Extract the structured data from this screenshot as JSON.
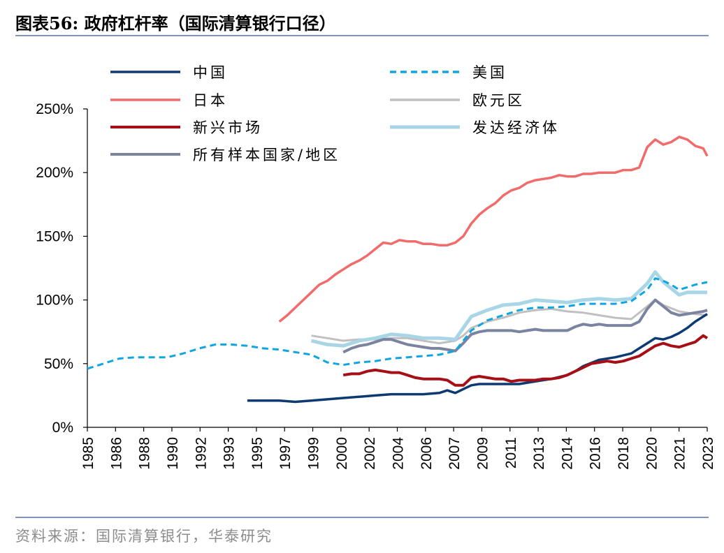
{
  "header": {
    "title": "图表56:  政府杠杆率（国际清算银行口径）"
  },
  "footer": {
    "source": "资料来源：国际清算银行，华泰研究"
  },
  "chart_data": {
    "type": "line",
    "title": "",
    "ylim": [
      0,
      250
    ],
    "yticks": [
      "0%",
      "50%",
      "100%",
      "150%",
      "200%",
      "250%"
    ],
    "xlim": [
      1985,
      2023.75
    ],
    "xticks": [
      "1985",
      "1986",
      "1988",
      "1990",
      "1992",
      "1993",
      "1995",
      "1997",
      "1999",
      "2000",
      "2002",
      "2004",
      "2006",
      "2007",
      "2009",
      "2011",
      "2013",
      "2014",
      "2016",
      "2018",
      "2020",
      "2021",
      "2023"
    ],
    "legend_position": "top",
    "series": [
      {
        "name": "中国",
        "color": "#0d3a73",
        "width": 3.5,
        "dash": "",
        "points": [
          [
            1995.0,
            21
          ],
          [
            1996.0,
            21
          ],
          [
            1997.0,
            21
          ],
          [
            1998.0,
            20
          ],
          [
            1999.0,
            21
          ],
          [
            2000.0,
            22
          ],
          [
            2001.0,
            23
          ],
          [
            2002.0,
            24
          ],
          [
            2003.0,
            25
          ],
          [
            2004.0,
            26
          ],
          [
            2005.0,
            26
          ],
          [
            2006.0,
            26
          ],
          [
            2007.0,
            27
          ],
          [
            2007.5,
            29
          ],
          [
            2008.0,
            27
          ],
          [
            2008.5,
            30
          ],
          [
            2009.0,
            33
          ],
          [
            2009.5,
            34
          ],
          [
            2010.0,
            34
          ],
          [
            2011.0,
            34
          ],
          [
            2012.0,
            34
          ],
          [
            2013.0,
            36
          ],
          [
            2014.0,
            38
          ],
          [
            2015.0,
            41
          ],
          [
            2015.5,
            44
          ],
          [
            2016.0,
            48
          ],
          [
            2017.0,
            53
          ],
          [
            2018.0,
            55
          ],
          [
            2019.0,
            58
          ],
          [
            2019.5,
            62
          ],
          [
            2020.0,
            66
          ],
          [
            2020.5,
            70
          ],
          [
            2021.0,
            69
          ],
          [
            2021.5,
            71
          ],
          [
            2022.0,
            74
          ],
          [
            2022.5,
            78
          ],
          [
            2023.0,
            83
          ],
          [
            2023.5,
            87
          ],
          [
            2023.75,
            89
          ]
        ]
      },
      {
        "name": "美国",
        "color": "#10a5e0",
        "width": 3,
        "dash": "9,6",
        "points": [
          [
            1985.0,
            46
          ],
          [
            1986.0,
            50
          ],
          [
            1987.0,
            54
          ],
          [
            1988.0,
            55
          ],
          [
            1989.0,
            55
          ],
          [
            1990.0,
            55
          ],
          [
            1991.0,
            58
          ],
          [
            1992.0,
            62
          ],
          [
            1993.0,
            65
          ],
          [
            1994.0,
            65
          ],
          [
            1995.0,
            64
          ],
          [
            1996.0,
            62
          ],
          [
            1997.0,
            61
          ],
          [
            1998.0,
            59
          ],
          [
            1999.0,
            57
          ],
          [
            2000.0,
            51
          ],
          [
            2001.0,
            49
          ],
          [
            2002.0,
            51
          ],
          [
            2003.0,
            52
          ],
          [
            2004.0,
            54
          ],
          [
            2005.0,
            55
          ],
          [
            2006.0,
            56
          ],
          [
            2007.0,
            57
          ],
          [
            2008.0,
            60
          ],
          [
            2008.5,
            68
          ],
          [
            2009.0,
            76
          ],
          [
            2010.0,
            84
          ],
          [
            2011.0,
            88
          ],
          [
            2012.0,
            92
          ],
          [
            2013.0,
            94
          ],
          [
            2014.0,
            94
          ],
          [
            2015.0,
            95
          ],
          [
            2016.0,
            97
          ],
          [
            2017.0,
            97
          ],
          [
            2018.0,
            97
          ],
          [
            2019.0,
            99
          ],
          [
            2020.0,
            108
          ],
          [
            2020.5,
            117
          ],
          [
            2021.0,
            115
          ],
          [
            2021.5,
            112
          ],
          [
            2022.0,
            108
          ],
          [
            2022.5,
            110
          ],
          [
            2023.0,
            112
          ],
          [
            2023.75,
            114
          ]
        ]
      },
      {
        "name": "日本",
        "color": "#f26b6b",
        "width": 3.5,
        "dash": "",
        "points": [
          [
            1997.0,
            83
          ],
          [
            1997.5,
            88
          ],
          [
            1998.0,
            94
          ],
          [
            1998.5,
            100
          ],
          [
            1999.0,
            106
          ],
          [
            1999.5,
            112
          ],
          [
            2000.0,
            115
          ],
          [
            2000.5,
            120
          ],
          [
            2001.0,
            124
          ],
          [
            2001.5,
            128
          ],
          [
            2002.0,
            131
          ],
          [
            2002.5,
            135
          ],
          [
            2003.0,
            140
          ],
          [
            2003.5,
            145
          ],
          [
            2004.0,
            144
          ],
          [
            2004.5,
            147
          ],
          [
            2005.0,
            146
          ],
          [
            2005.5,
            146
          ],
          [
            2006.0,
            144
          ],
          [
            2006.5,
            144
          ],
          [
            2007.0,
            143
          ],
          [
            2007.5,
            143
          ],
          [
            2008.0,
            145
          ],
          [
            2008.5,
            150
          ],
          [
            2009.0,
            160
          ],
          [
            2009.5,
            167
          ],
          [
            2010.0,
            172
          ],
          [
            2010.5,
            176
          ],
          [
            2011.0,
            182
          ],
          [
            2011.5,
            186
          ],
          [
            2012.0,
            188
          ],
          [
            2012.5,
            192
          ],
          [
            2013.0,
            194
          ],
          [
            2013.5,
            195
          ],
          [
            2014.0,
            196
          ],
          [
            2014.5,
            198
          ],
          [
            2015.0,
            197
          ],
          [
            2015.5,
            197
          ],
          [
            2016.0,
            199
          ],
          [
            2016.5,
            199
          ],
          [
            2017.0,
            200
          ],
          [
            2017.5,
            200
          ],
          [
            2018.0,
            200
          ],
          [
            2018.5,
            202
          ],
          [
            2019.0,
            202
          ],
          [
            2019.5,
            204
          ],
          [
            2020.0,
            220
          ],
          [
            2020.5,
            226
          ],
          [
            2021.0,
            222
          ],
          [
            2021.5,
            224
          ],
          [
            2022.0,
            228
          ],
          [
            2022.5,
            226
          ],
          [
            2023.0,
            221
          ],
          [
            2023.5,
            219
          ],
          [
            2023.75,
            213
          ]
        ]
      },
      {
        "name": "欧元区",
        "color": "#c0c0c0",
        "width": 3,
        "dash": "",
        "points": [
          [
            1999.0,
            72
          ],
          [
            2000.0,
            70
          ],
          [
            2001.0,
            68
          ],
          [
            2002.0,
            69
          ],
          [
            2003.0,
            69
          ],
          [
            2004.0,
            70
          ],
          [
            2005.0,
            70
          ],
          [
            2006.0,
            68
          ],
          [
            2007.0,
            66
          ],
          [
            2008.0,
            68
          ],
          [
            2008.5,
            72
          ],
          [
            2009.0,
            78
          ],
          [
            2010.0,
            83
          ],
          [
            2011.0,
            86
          ],
          [
            2012.0,
            90
          ],
          [
            2013.0,
            92
          ],
          [
            2014.0,
            93
          ],
          [
            2015.0,
            91
          ],
          [
            2016.0,
            90
          ],
          [
            2017.0,
            88
          ],
          [
            2018.0,
            86
          ],
          [
            2019.0,
            85
          ],
          [
            2020.0,
            95
          ],
          [
            2020.5,
            100
          ],
          [
            2021.0,
            96
          ],
          [
            2022.0,
            91
          ],
          [
            2023.0,
            89
          ],
          [
            2023.75,
            88
          ]
        ]
      },
      {
        "name": "新兴市场",
        "color": "#a50f15",
        "width": 4,
        "dash": "",
        "points": [
          [
            2001.0,
            41
          ],
          [
            2001.5,
            42
          ],
          [
            2002.0,
            42
          ],
          [
            2002.5,
            44
          ],
          [
            2003.0,
            45
          ],
          [
            2003.5,
            44
          ],
          [
            2004.0,
            43
          ],
          [
            2004.5,
            43
          ],
          [
            2005.0,
            41
          ],
          [
            2005.5,
            39
          ],
          [
            2006.0,
            38
          ],
          [
            2006.5,
            38
          ],
          [
            2007.0,
            38
          ],
          [
            2007.5,
            37
          ],
          [
            2008.0,
            33
          ],
          [
            2008.5,
            33
          ],
          [
            2009.0,
            39
          ],
          [
            2009.5,
            40
          ],
          [
            2010.0,
            39
          ],
          [
            2010.5,
            38
          ],
          [
            2011.0,
            38
          ],
          [
            2011.5,
            36
          ],
          [
            2012.0,
            37
          ],
          [
            2012.5,
            37
          ],
          [
            2013.0,
            37
          ],
          [
            2013.5,
            38
          ],
          [
            2014.0,
            38
          ],
          [
            2014.5,
            39
          ],
          [
            2015.0,
            41
          ],
          [
            2015.5,
            44
          ],
          [
            2016.0,
            47
          ],
          [
            2016.5,
            50
          ],
          [
            2017.0,
            51
          ],
          [
            2017.5,
            52
          ],
          [
            2018.0,
            51
          ],
          [
            2018.5,
            52
          ],
          [
            2019.0,
            54
          ],
          [
            2019.5,
            56
          ],
          [
            2020.0,
            60
          ],
          [
            2020.5,
            64
          ],
          [
            2021.0,
            66
          ],
          [
            2021.5,
            64
          ],
          [
            2022.0,
            63
          ],
          [
            2022.5,
            65
          ],
          [
            2023.0,
            67
          ],
          [
            2023.5,
            72
          ],
          [
            2023.75,
            70
          ]
        ]
      },
      {
        "name": "发达经济体",
        "color": "#a8d6e6",
        "width": 5,
        "dash": "",
        "points": [
          [
            1999.0,
            68
          ],
          [
            2000.0,
            65
          ],
          [
            2001.0,
            64
          ],
          [
            2002.0,
            68
          ],
          [
            2003.0,
            70
          ],
          [
            2004.0,
            73
          ],
          [
            2005.0,
            72
          ],
          [
            2006.0,
            70
          ],
          [
            2007.0,
            70
          ],
          [
            2008.0,
            69
          ],
          [
            2008.5,
            78
          ],
          [
            2009.0,
            87
          ],
          [
            2010.0,
            92
          ],
          [
            2011.0,
            96
          ],
          [
            2012.0,
            97
          ],
          [
            2013.0,
            100
          ],
          [
            2014.0,
            99
          ],
          [
            2015.0,
            98
          ],
          [
            2016.0,
            100
          ],
          [
            2017.0,
            101
          ],
          [
            2018.0,
            100
          ],
          [
            2019.0,
            101
          ],
          [
            2020.0,
            113
          ],
          [
            2020.5,
            122
          ],
          [
            2021.0,
            114
          ],
          [
            2021.5,
            109
          ],
          [
            2022.0,
            104
          ],
          [
            2022.5,
            106
          ],
          [
            2023.0,
            106
          ],
          [
            2023.75,
            106
          ]
        ]
      },
      {
        "name": "所有样本国家/地区",
        "color": "#7a84a0",
        "width": 4,
        "dash": "",
        "points": [
          [
            2001.0,
            59
          ],
          [
            2001.5,
            62
          ],
          [
            2002.0,
            64
          ],
          [
            2002.5,
            65
          ],
          [
            2003.0,
            67
          ],
          [
            2003.5,
            69
          ],
          [
            2004.0,
            69
          ],
          [
            2004.5,
            67
          ],
          [
            2005.0,
            65
          ],
          [
            2005.5,
            64
          ],
          [
            2006.0,
            63
          ],
          [
            2006.5,
            62
          ],
          [
            2007.0,
            62
          ],
          [
            2007.5,
            61
          ],
          [
            2008.0,
            60
          ],
          [
            2008.5,
            66
          ],
          [
            2009.0,
            73
          ],
          [
            2009.5,
            75
          ],
          [
            2010.0,
            76
          ],
          [
            2010.5,
            76
          ],
          [
            2011.0,
            76
          ],
          [
            2011.5,
            76
          ],
          [
            2012.0,
            75
          ],
          [
            2012.5,
            76
          ],
          [
            2013.0,
            77
          ],
          [
            2013.5,
            76
          ],
          [
            2014.0,
            76
          ],
          [
            2014.5,
            76
          ],
          [
            2015.0,
            76
          ],
          [
            2015.5,
            79
          ],
          [
            2016.0,
            81
          ],
          [
            2016.5,
            80
          ],
          [
            2017.0,
            81
          ],
          [
            2017.5,
            80
          ],
          [
            2018.0,
            80
          ],
          [
            2018.5,
            80
          ],
          [
            2019.0,
            80
          ],
          [
            2019.5,
            83
          ],
          [
            2020.0,
            93
          ],
          [
            2020.5,
            100
          ],
          [
            2021.0,
            95
          ],
          [
            2021.5,
            90
          ],
          [
            2022.0,
            88
          ],
          [
            2022.5,
            89
          ],
          [
            2023.0,
            90
          ],
          [
            2023.5,
            91
          ],
          [
            2023.75,
            92
          ]
        ]
      }
    ]
  }
}
